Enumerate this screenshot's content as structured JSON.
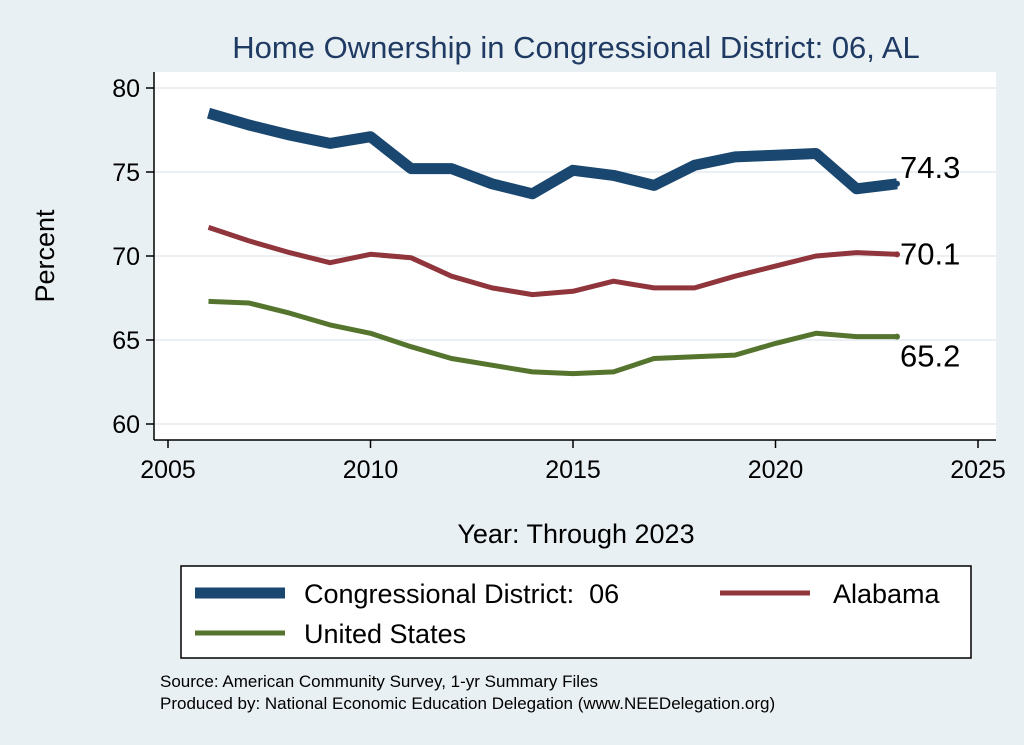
{
  "chart_data": {
    "type": "line",
    "title": "Home Ownership in Congressional District:  06, AL",
    "xlabel": "Year: Through 2023",
    "ylabel": "Percent",
    "xlim": [
      2005,
      2025
    ],
    "ylim": [
      60,
      80
    ],
    "x_ticks": [
      2005,
      2010,
      2015,
      2020,
      2025
    ],
    "y_ticks": [
      60,
      65,
      70,
      75,
      80
    ],
    "grid": "horizontal",
    "legend_position": "bottom",
    "x": [
      2006,
      2007,
      2008,
      2009,
      2010,
      2011,
      2012,
      2013,
      2014,
      2015,
      2016,
      2017,
      2018,
      2019,
      2020,
      2021,
      2022,
      2023
    ],
    "series": [
      {
        "name": "Congressional District:  06",
        "color": "#1a476f",
        "values": [
          78.5,
          77.8,
          77.2,
          76.7,
          77.1,
          75.2,
          75.2,
          74.3,
          73.7,
          75.1,
          74.8,
          74.2,
          75.4,
          75.9,
          76.0,
          76.1,
          74.0,
          74.3
        ],
        "end_label": "74.3"
      },
      {
        "name": "Alabama",
        "color": "#90353b",
        "values": [
          71.7,
          70.9,
          70.2,
          69.6,
          70.1,
          69.9,
          68.8,
          68.1,
          67.7,
          67.9,
          68.5,
          68.1,
          68.1,
          68.8,
          69.4,
          70.0,
          70.2,
          70.1
        ],
        "end_label": "70.1"
      },
      {
        "name": "United States",
        "color": "#55752f",
        "values": [
          67.3,
          67.2,
          66.6,
          65.9,
          65.4,
          64.6,
          63.9,
          63.5,
          63.1,
          63.0,
          63.1,
          63.9,
          64.0,
          64.1,
          64.8,
          65.4,
          65.2,
          65.2
        ],
        "end_label": "65.2"
      }
    ],
    "notes": [
      "Source: American Community Survey, 1-yr Summary Files",
      "Produced by: National Economic Education Delegation (www.NEEDelegation.org)"
    ]
  }
}
